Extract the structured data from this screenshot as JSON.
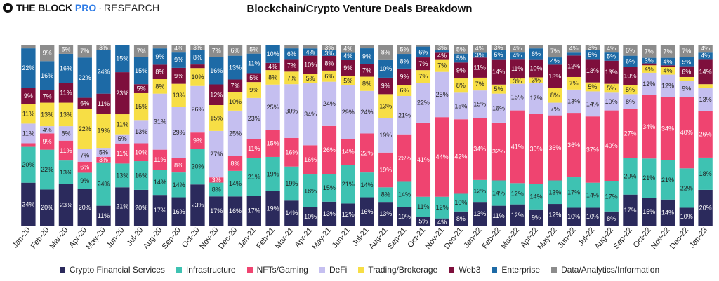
{
  "brand": {
    "name": "THE BLOCK",
    "pro": "PRO",
    "separator": "·",
    "research": "RESEARCH"
  },
  "chart_data": {
    "type": "bar",
    "stacked": true,
    "normalized": true,
    "title": "Blockchain/Crypto Venture Deals Breakdown",
    "xlabel": "",
    "ylabel": "",
    "ylim": [
      0,
      100
    ],
    "grid": false,
    "legend_position": "bottom",
    "value_suffix": "%",
    "categories": [
      "Jan-20",
      "Feb-20",
      "Mar-20",
      "Apr-20",
      "May-20",
      "Jun-20",
      "Jul-20",
      "Aug-20",
      "Sep-20",
      "Oct-20",
      "Nov-20",
      "Dec-20",
      "Jan-21",
      "Feb-21",
      "Mar-21",
      "Apr-21",
      "May-21",
      "Jun-21",
      "Jul-21",
      "Aug-21",
      "Sep-21",
      "Oct-21",
      "Nov-21",
      "Dec-21",
      "Jan-22",
      "Feb-22",
      "Mar-22",
      "Apr-22",
      "May-22",
      "Jun-22",
      "Jul-22",
      "Aug-22",
      "Sep-22",
      "Oct-22",
      "Nov-22",
      "Dec-22",
      "Jan-23"
    ],
    "series": [
      {
        "name": "Crypto Financial Services",
        "color": "#2b2a5c",
        "values": [
          24,
          20,
          23,
          20,
          11,
          21,
          20,
          17,
          16,
          23,
          17,
          16,
          17,
          19,
          14,
          10,
          13,
          12,
          16,
          13,
          10,
          5,
          4,
          8,
          13,
          11,
          12,
          9,
          12,
          10,
          10,
          8,
          17,
          15,
          14,
          10,
          20
        ]
      },
      {
        "name": "Infrastructure",
        "color": "#3ec2b2",
        "values": [
          20,
          22,
          13,
          9,
          24,
          13,
          16,
          14,
          14,
          20,
          8,
          14,
          21,
          19,
          19,
          18,
          15,
          21,
          14,
          8,
          14,
          11,
          12,
          10,
          12,
          14,
          12,
          14,
          13,
          17,
          14,
          17,
          20,
          21,
          21,
          22,
          18
        ]
      },
      {
        "name": "NFTs/Gaming",
        "color": "#ef4470",
        "values": [
          2,
          9,
          11,
          6,
          3,
          11,
          10,
          11,
          8,
          9,
          3,
          8,
          11,
          15,
          16,
          16,
          26,
          14,
          22,
          19,
          26,
          41,
          44,
          42,
          34,
          32,
          41,
          39,
          36,
          36,
          37,
          40,
          27,
          34,
          34,
          40,
          26
        ]
      },
      {
        "name": "DeFi",
        "color": "#c5bff0",
        "values": [
          11,
          4,
          8,
          7,
          5,
          5,
          13,
          31,
          29,
          26,
          27,
          25,
          23,
          25,
          30,
          34,
          24,
          29,
          24,
          19,
          21,
          22,
          25,
          15,
          15,
          16,
          15,
          17,
          7,
          13,
          14,
          10,
          8,
          12,
          12,
          9,
          13
        ]
      },
      {
        "name": "Trading/Brokerage",
        "color": "#f7de45",
        "values": [
          11,
          13,
          13,
          22,
          19,
          11,
          15,
          8,
          13,
          10,
          15,
          10,
          9,
          8,
          7,
          5,
          6,
          5,
          8,
          13,
          6,
          7,
          7,
          8,
          7,
          5,
          3,
          3,
          8,
          7,
          5,
          5,
          5,
          4,
          4,
          2,
          2
        ]
      },
      {
        "name": "Web3",
        "color": "#7e0f3c",
        "values": [
          9,
          7,
          11,
          6,
          11,
          23,
          5,
          8,
          9,
          2,
          12,
          7,
          5,
          4,
          7,
          10,
          8,
          9,
          7,
          9,
          9,
          7,
          4,
          9,
          11,
          14,
          11,
          10,
          13,
          12,
          13,
          13,
          10,
          1,
          1,
          6,
          14
        ]
      },
      {
        "name": "Enterprise",
        "color": "#1d6aa6",
        "values": [
          22,
          16,
          16,
          22,
          24,
          15,
          15,
          9,
          9,
          8,
          16,
          13,
          11,
          10,
          6,
          4,
          3,
          4,
          9,
          10,
          8,
          6,
          1,
          5,
          3,
          5,
          4,
          6,
          4,
          2,
          5,
          5,
          6,
          3,
          4,
          5,
          4
        ]
      },
      {
        "name": "Data/Analytics/Information",
        "color": "#8c8c8c",
        "values": [
          2,
          9,
          5,
          7,
          3,
          0,
          7,
          2,
          4,
          3,
          7,
          6,
          5,
          0,
          2,
          2,
          3,
          4,
          2,
          8,
          5,
          1,
          3,
          5,
          4,
          3,
          4,
          2,
          7,
          4,
          3,
          4,
          6,
          7,
          7,
          7,
          4
        ]
      }
    ]
  }
}
